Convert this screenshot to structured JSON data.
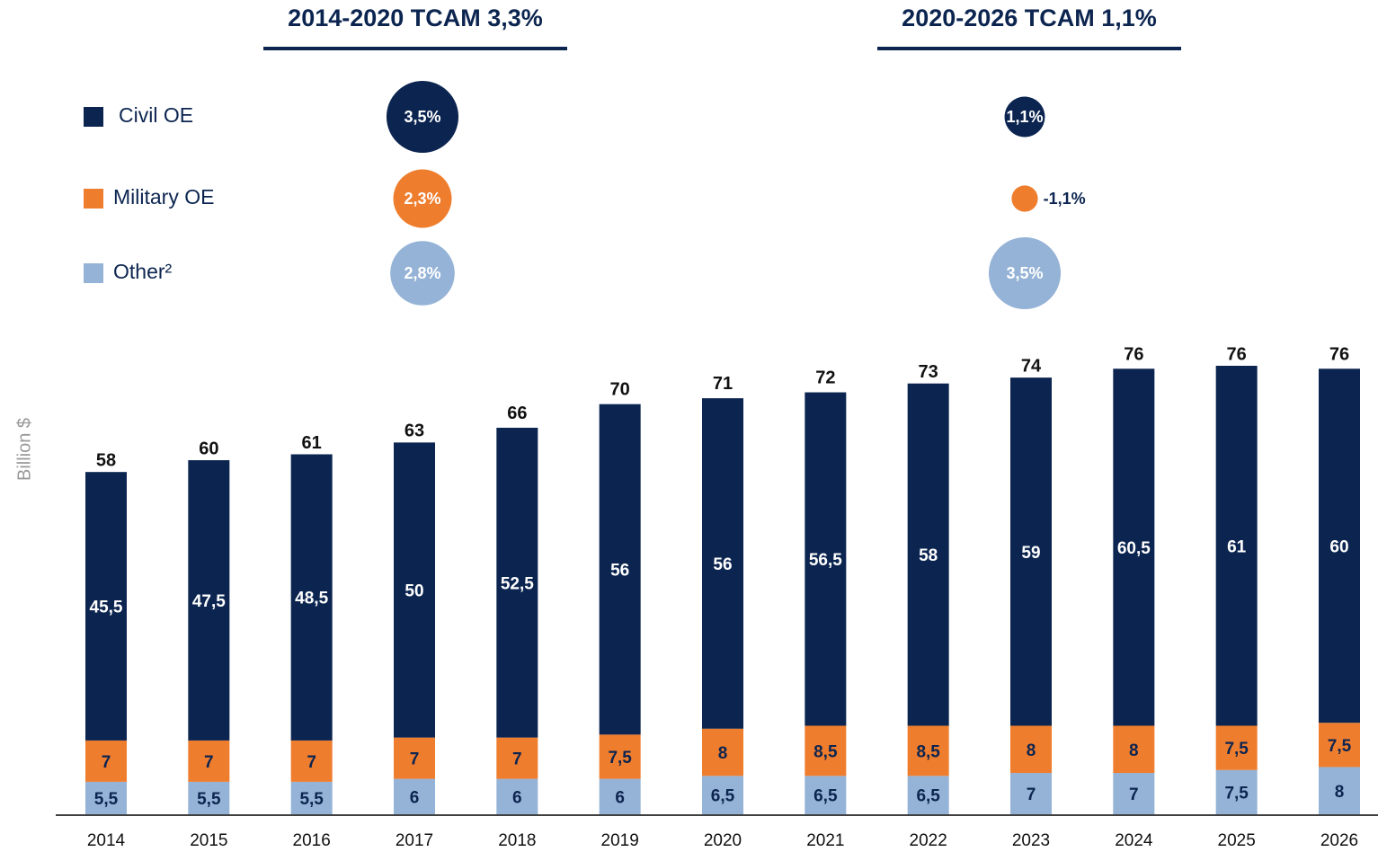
{
  "chart_data": {
    "type": "bar",
    "stacked": true,
    "y_label": "Billion $",
    "categories": [
      "2014",
      "2015",
      "2016",
      "2017",
      "2018",
      "2019",
      "2020",
      "2021",
      "2022",
      "2023",
      "2024",
      "2025",
      "2026"
    ],
    "series": [
      {
        "name": "Civil OE",
        "color": "#0c2550",
        "values": [
          45.5,
          47.5,
          48.5,
          50,
          52.5,
          56,
          56,
          56.5,
          58,
          59,
          60.5,
          61,
          60
        ],
        "value_labels": [
          "45,5",
          "47,5",
          "48,5",
          "50",
          "52,5",
          "56",
          "56",
          "56,5",
          "58",
          "59",
          "60,5",
          "61",
          "60"
        ]
      },
      {
        "name": "Military OE",
        "color": "#ef7d2e",
        "values": [
          7,
          7,
          7,
          7,
          7,
          7.5,
          8,
          8.5,
          8.5,
          8,
          8,
          7.5,
          7.5
        ],
        "value_labels": [
          "7",
          "7",
          "7",
          "7",
          "7",
          "7,5",
          "8",
          "8,5",
          "8,5",
          "8",
          "8",
          "7,5",
          "7,5"
        ]
      },
      {
        "name": "Other²",
        "color": "#95b3d7",
        "values": [
          5.5,
          5.5,
          5.5,
          6,
          6,
          6,
          6.5,
          6.5,
          6.5,
          7,
          7,
          7.5,
          8
        ],
        "value_labels": [
          "5,5",
          "5,5",
          "5,5",
          "6",
          "6",
          "6",
          "6,5",
          "6,5",
          "6,5",
          "7",
          "7",
          "7,5",
          "8"
        ]
      }
    ],
    "totals": [
      58,
      60,
      61,
      63,
      66,
      70,
      71,
      72,
      73,
      74,
      76,
      76,
      76
    ],
    "cagr": [
      {
        "title": "2014-2020 TCAM 3,3%",
        "values": [
          3.5,
          2.3,
          2.8
        ],
        "value_labels": [
          "3,5%",
          "2,3%",
          "2,8%"
        ]
      },
      {
        "title": "2020-2026 TCAM 1,1%",
        "values": [
          1.1,
          -1.1,
          3.5
        ],
        "value_labels": [
          "1,1%",
          "-1,1%",
          "3,5%"
        ]
      }
    ]
  }
}
